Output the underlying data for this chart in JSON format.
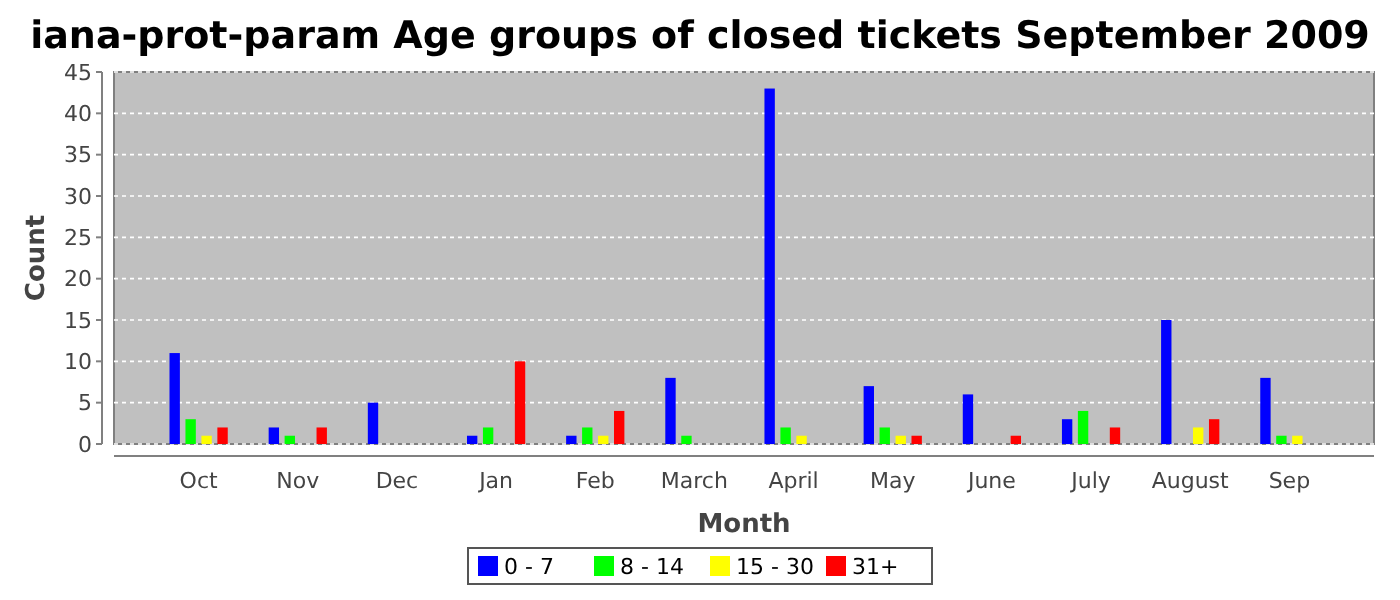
{
  "chart_data": {
    "type": "bar",
    "title": "iana-prot-param Age groups of closed tickets September 2009",
    "xlabel": "Month",
    "ylabel": "Count",
    "categories": [
      "Oct",
      "Nov",
      "Dec",
      "Jan",
      "Feb",
      "March",
      "April",
      "May",
      "June",
      "July",
      "August",
      "Sep"
    ],
    "series": [
      {
        "name": "0 - 7",
        "color": "#0000ff",
        "values": [
          11,
          2,
          5,
          1,
          1,
          8,
          43,
          7,
          6,
          3,
          15,
          8
        ]
      },
      {
        "name": "8 - 14",
        "color": "#00ff00",
        "values": [
          3,
          1,
          0,
          2,
          2,
          1,
          2,
          2,
          0,
          4,
          0,
          1
        ]
      },
      {
        "name": "15 - 30",
        "color": "#ffff00",
        "values": [
          1,
          0,
          0,
          0,
          1,
          0,
          1,
          1,
          0,
          0,
          2,
          1
        ]
      },
      {
        "name": "31+",
        "color": "#ff0000",
        "values": [
          2,
          2,
          0,
          10,
          4,
          0,
          0,
          1,
          1,
          2,
          3,
          0
        ]
      }
    ],
    "ylim": [
      0,
      45
    ],
    "yticks": [
      0,
      5,
      10,
      15,
      20,
      25,
      30,
      35,
      40,
      45
    ],
    "grid": "y",
    "legend": "bottom"
  }
}
